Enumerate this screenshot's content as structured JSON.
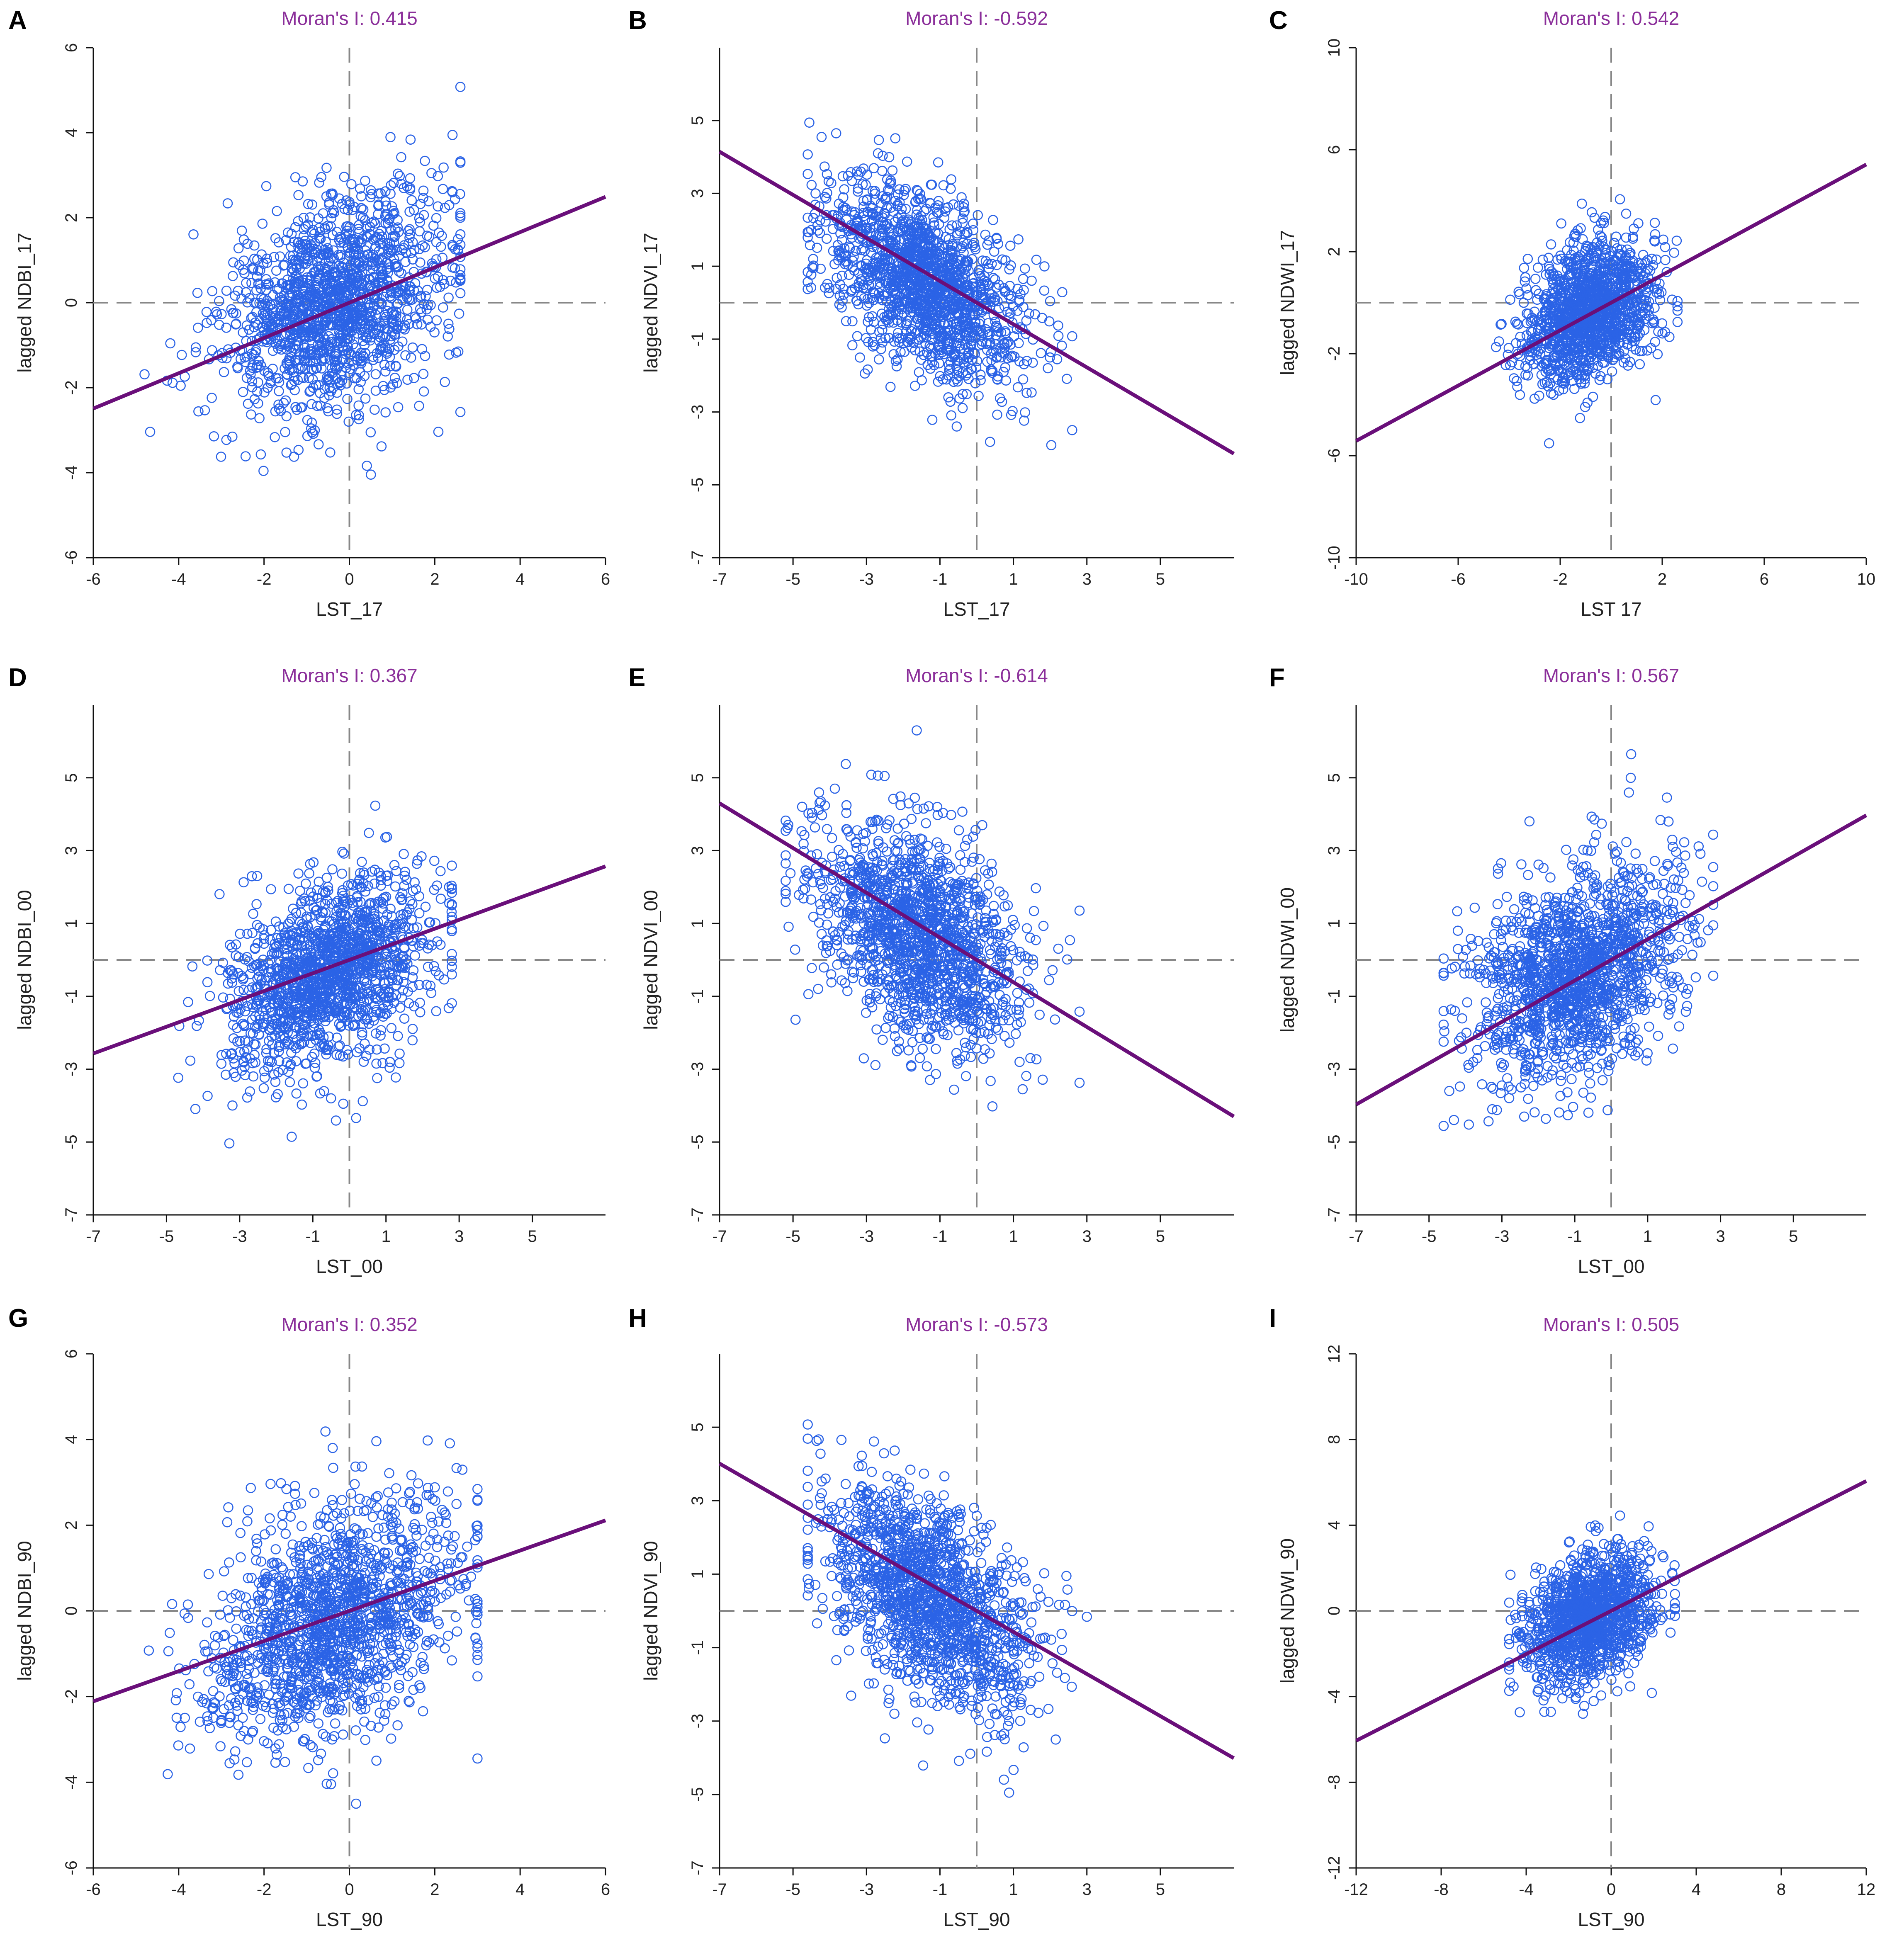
{
  "chart_data": [
    {
      "type": "scatter",
      "panel": "A",
      "title": "Moran's I: 0.415",
      "moran_i": 0.415,
      "xlabel": "LST_17",
      "ylabel": "lagged NDBI_17",
      "xlim": [
        -6,
        6
      ],
      "ylim": [
        -6,
        6
      ],
      "xticks": [
        -6,
        -4,
        -2,
        0,
        2,
        4,
        6
      ],
      "yticks": [
        -6,
        -4,
        -2,
        0,
        2,
        4,
        6
      ],
      "cloud": {
        "x_range": [
          -4.8,
          2.6
        ],
        "center": [
          -0.3,
          0
        ],
        "spread": [
          1.3,
          1.2
        ],
        "n": 1500,
        "tilt": 0.35
      },
      "fit_slope": 0.415
    },
    {
      "type": "scatter",
      "panel": "B",
      "title": "Moran's I: -0.592",
      "moran_i": -0.592,
      "xlabel": "LST_17",
      "ylabel": "lagged NDVI_17",
      "xlim": [
        -7,
        7
      ],
      "ylim": [
        -7,
        7
      ],
      "xticks": [
        -7,
        -5,
        -3,
        -1,
        1,
        3,
        5
      ],
      "yticks": [
        -7,
        -5,
        -3,
        -1,
        1,
        3,
        5
      ],
      "cloud": {
        "x_range": [
          -4.6,
          2.6
        ],
        "center": [
          -1.3,
          0.5
        ],
        "spread": [
          1.3,
          1.2
        ],
        "n": 1500,
        "tilt": -0.55
      },
      "fit_slope": -0.592
    },
    {
      "type": "scatter",
      "panel": "C",
      "title": "Moran's I: 0.542",
      "moran_i": 0.542,
      "xlabel": "LST  17",
      "ylabel": "lagged NDWI_17",
      "xlim": [
        -10,
        10
      ],
      "ylim": [
        -10,
        10
      ],
      "xticks": [
        -10,
        -6,
        -2,
        2,
        6,
        10
      ],
      "yticks": [
        -10,
        -6,
        -2,
        2,
        6,
        10
      ],
      "cloud": {
        "x_range": [
          -4.6,
          2.6
        ],
        "center": [
          -0.9,
          -0.3
        ],
        "spread": [
          1.3,
          1.3
        ],
        "n": 1300,
        "tilt": 0.4
      },
      "fit_slope": 0.542
    },
    {
      "type": "scatter",
      "panel": "D",
      "title": "Moran's I: 0.367",
      "moran_i": 0.367,
      "xlabel": "LST_00",
      "ylabel": "lagged NDBI_00",
      "xlim": [
        -7,
        7
      ],
      "ylim": [
        -7,
        7
      ],
      "xticks": [
        -7,
        -5,
        -3,
        -1,
        1,
        3,
        5
      ],
      "yticks": [
        -7,
        -5,
        -3,
        -1,
        1,
        3,
        5
      ],
      "cloud": {
        "x_range": [
          -5,
          2.8
        ],
        "center": [
          -0.6,
          -0.4
        ],
        "spread": [
          1.4,
          1.2
        ],
        "n": 1500,
        "tilt": 0.35
      },
      "fit_slope": 0.367
    },
    {
      "type": "scatter",
      "panel": "E",
      "title": "Moran's I: -0.614",
      "moran_i": -0.614,
      "xlabel": "",
      "ylabel": "lagged NDVI_00",
      "xlim": [
        -7,
        7
      ],
      "ylim": [
        -7,
        7
      ],
      "xticks": [
        -7,
        -5,
        -3,
        -1,
        1,
        3,
        5
      ],
      "yticks": [
        -7,
        -5,
        -3,
        -1,
        1,
        3,
        5
      ],
      "cloud": {
        "x_range": [
          -5.2,
          2.8
        ],
        "center": [
          -1.5,
          0.6
        ],
        "spread": [
          1.4,
          1.4
        ],
        "n": 1500,
        "tilt": -0.5
      },
      "fit_slope": -0.614
    },
    {
      "type": "scatter",
      "panel": "F",
      "title": "Moran's I: 0.567",
      "moran_i": 0.567,
      "xlabel": "LST_00",
      "ylabel": "lagged NDWI_00",
      "xlim": [
        -7,
        7
      ],
      "ylim": [
        -7,
        7
      ],
      "xticks": [
        -7,
        -5,
        -3,
        -1,
        1,
        3,
        5
      ],
      "yticks": [
        -7,
        -5,
        -3,
        -1,
        1,
        3,
        5
      ],
      "cloud": {
        "x_range": [
          -4.6,
          2.8
        ],
        "center": [
          -1,
          -0.4
        ],
        "spread": [
          1.4,
          1.4
        ],
        "n": 1500,
        "tilt": 0.35
      },
      "fit_slope": 0.567
    },
    {
      "type": "scatter",
      "panel": "G",
      "title": "Moran's I: 0.352",
      "moran_i": 0.352,
      "xlabel": "LST_90",
      "ylabel": "lagged NDBI_90",
      "xlim": [
        -6,
        6
      ],
      "ylim": [
        -6,
        6
      ],
      "xticks": [
        -6,
        -4,
        -2,
        0,
        2,
        4,
        6
      ],
      "yticks": [
        -6,
        -4,
        -2,
        0,
        2,
        4,
        6
      ],
      "cloud": {
        "x_range": [
          -4.7,
          3
        ],
        "center": [
          -0.4,
          -0.3
        ],
        "spread": [
          1.5,
          1.3
        ],
        "n": 1500,
        "tilt": 0.35
      },
      "fit_slope": 0.352
    },
    {
      "type": "scatter",
      "panel": "H",
      "title": "Moran's I: -0.573",
      "moran_i": -0.573,
      "xlabel": "LST_90",
      "ylabel": "lagged NDVI_90",
      "xlim": [
        -7,
        7
      ],
      "ylim": [
        -7,
        7
      ],
      "xticks": [
        -7,
        -5,
        -3,
        -1,
        1,
        3,
        5
      ],
      "yticks": [
        -7,
        -5,
        -3,
        -1,
        1,
        3,
        5
      ],
      "cloud": {
        "x_range": [
          -4.6,
          3
        ],
        "center": [
          -1.2,
          0.3
        ],
        "spread": [
          1.4,
          1.3
        ],
        "n": 1500,
        "tilt": -0.55
      },
      "fit_slope": -0.573
    },
    {
      "type": "scatter",
      "panel": "I",
      "title": "Moran's I: 0.505",
      "moran_i": 0.505,
      "xlabel": "LST_90",
      "ylabel": "lagged NDWI_90",
      "xlim": [
        -12,
        12
      ],
      "ylim": [
        -12,
        12
      ],
      "xticks": [
        -12,
        -8,
        -4,
        0,
        4,
        8,
        12
      ],
      "yticks": [
        -12,
        -8,
        -4,
        0,
        4,
        8,
        12
      ],
      "cloud": {
        "x_range": [
          -4.8,
          3
        ],
        "center": [
          -1,
          -0.3
        ],
        "spread": [
          1.5,
          1.4
        ],
        "n": 1300,
        "tilt": 0.35
      },
      "fit_slope": 0.505
    }
  ],
  "colors": {
    "points": "#2b63e6",
    "fit_line": "#6a0f7a",
    "title": "#8b2f9a",
    "guides": "#888888"
  }
}
